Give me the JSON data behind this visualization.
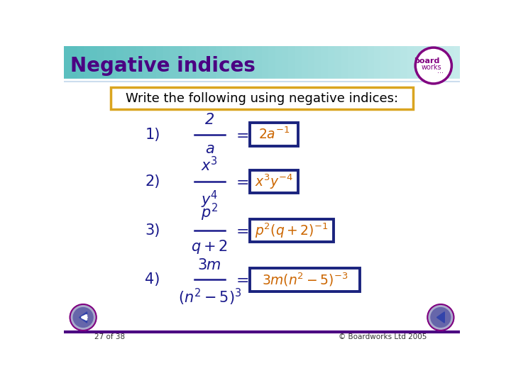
{
  "title": "Negative indices",
  "title_color": "#4B0082",
  "header_bg_left": "#5BBFBF",
  "header_bg_right": "#C8ECEC",
  "slide_bg": "#FFFFFF",
  "instruction": "Write the following using negative indices:",
  "answer_color": "#CC6600",
  "question_color": "#1A1A8C",
  "box_border_color": "#1A237E",
  "footer_left": "27 of 38",
  "footer_right": "© Boardworks Ltd 2005",
  "footer_line_color": "#4B0082",
  "questions": [
    {
      "label": "1)",
      "lhs_num": "2",
      "lhs_den": "a",
      "rhs_latex": "$2a^{-1}$"
    },
    {
      "label": "2)",
      "lhs_num": "$x^3$",
      "lhs_den": "$y^4$",
      "rhs_latex": "$x^3y^{-4}$"
    },
    {
      "label": "3)",
      "lhs_num": "$p^2$",
      "lhs_den": "$q+2$",
      "rhs_latex": "$p^2(q+2)^{-1}$"
    },
    {
      "label": "4)",
      "lhs_num": "$3m$",
      "lhs_den": "$(n^2-5)^3$",
      "rhs_latex": "$3m(n^2-5)^{-3}$"
    }
  ]
}
